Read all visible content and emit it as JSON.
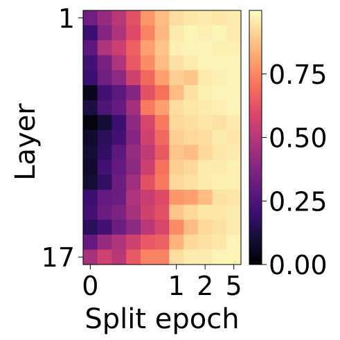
{
  "chart_data": {
    "type": "heatmap",
    "xlabel": "Split epoch",
    "ylabel": "Layer",
    "x_ticks": [
      {
        "label": "0",
        "col": 0
      },
      {
        "label": "1",
        "col": 6
      },
      {
        "label": "2",
        "col": 8
      },
      {
        "label": "5",
        "col": 10
      }
    ],
    "y_ticks": [
      {
        "label": "1",
        "row": 0
      },
      {
        "label": "17",
        "row": 16
      }
    ],
    "colorbar": {
      "colormap": "magma",
      "range": [
        0,
        1
      ],
      "tick_values": [
        0,
        0.25,
        0.5,
        0.75
      ],
      "tick_labels": [
        "0.00",
        "0.25",
        "0.50",
        "0.75"
      ]
    },
    "n_rows": 17,
    "n_cols": 11,
    "values": [
      [
        0.33,
        0.42,
        0.5,
        0.62,
        0.78,
        0.86,
        0.93,
        0.95,
        0.96,
        0.95,
        0.96
      ],
      [
        0.2,
        0.37,
        0.48,
        0.6,
        0.74,
        0.85,
        0.96,
        0.98,
        0.97,
        0.98,
        0.96
      ],
      [
        0.28,
        0.48,
        0.55,
        0.66,
        0.8,
        0.88,
        0.97,
        0.98,
        0.98,
        0.97,
        0.97
      ],
      [
        0.22,
        0.35,
        0.48,
        0.64,
        0.76,
        0.86,
        0.94,
        0.96,
        0.98,
        0.98,
        0.98
      ],
      [
        0.2,
        0.33,
        0.4,
        0.56,
        0.68,
        0.8,
        0.9,
        0.88,
        0.96,
        0.97,
        0.98
      ],
      [
        0.05,
        0.22,
        0.28,
        0.38,
        0.62,
        0.7,
        0.86,
        0.94,
        0.97,
        0.98,
        0.98
      ],
      [
        0.12,
        0.25,
        0.3,
        0.45,
        0.72,
        0.8,
        0.93,
        0.95,
        0.96,
        0.97,
        0.98
      ],
      [
        0.02,
        0.1,
        0.2,
        0.4,
        0.58,
        0.72,
        0.92,
        0.93,
        0.95,
        0.94,
        0.96
      ],
      [
        0.08,
        0.16,
        0.22,
        0.38,
        0.56,
        0.68,
        0.9,
        0.92,
        0.93,
        0.96,
        0.95
      ],
      [
        0.1,
        0.18,
        0.28,
        0.42,
        0.52,
        0.64,
        0.88,
        0.86,
        0.92,
        0.95,
        0.96
      ],
      [
        0.08,
        0.22,
        0.3,
        0.4,
        0.55,
        0.7,
        0.9,
        0.92,
        0.96,
        0.96,
        0.97
      ],
      [
        0.1,
        0.18,
        0.32,
        0.44,
        0.62,
        0.72,
        0.92,
        0.94,
        0.96,
        0.97,
        0.97
      ],
      [
        0.2,
        0.3,
        0.32,
        0.48,
        0.54,
        0.6,
        0.78,
        0.8,
        0.86,
        0.94,
        0.95
      ],
      [
        0.22,
        0.32,
        0.36,
        0.46,
        0.56,
        0.62,
        0.88,
        0.92,
        0.95,
        0.95,
        0.96
      ],
      [
        0.16,
        0.22,
        0.32,
        0.4,
        0.5,
        0.58,
        0.76,
        0.86,
        0.92,
        0.94,
        0.96
      ],
      [
        0.3,
        0.42,
        0.48,
        0.56,
        0.64,
        0.66,
        0.84,
        0.92,
        0.94,
        0.95,
        0.98
      ],
      [
        0.46,
        0.56,
        0.5,
        0.64,
        0.74,
        0.74,
        0.93,
        0.96,
        0.96,
        0.98,
        0.98
      ]
    ]
  }
}
